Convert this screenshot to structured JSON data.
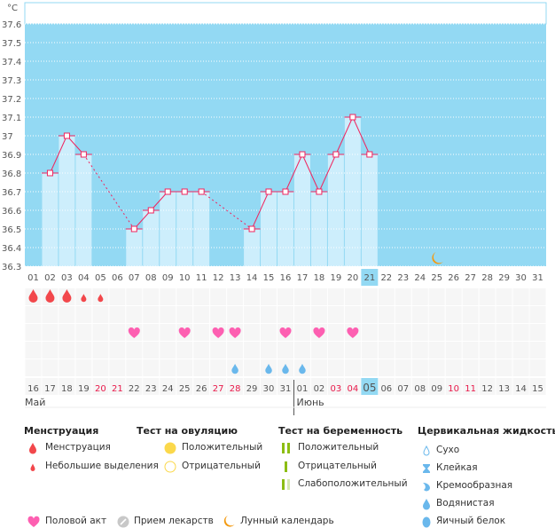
{
  "chart_data": {
    "type": "bar+line",
    "unit_label": "°C",
    "ylim": [
      36.3,
      37.6
    ],
    "yticks": [
      "36.3",
      "36.4",
      "36.5",
      "36.6",
      "36.7",
      "36.8",
      "36.9",
      "37",
      "37.1",
      "37.2",
      "37.3",
      "37.4",
      "37.5",
      "37.6"
    ],
    "grid": true,
    "cycle_days": [
      "01",
      "02",
      "03",
      "04",
      "05",
      "06",
      "07",
      "08",
      "09",
      "10",
      "11",
      "12",
      "13",
      "14",
      "15",
      "16",
      "17",
      "18",
      "19",
      "20",
      "21",
      "22",
      "23",
      "24",
      "25",
      "26",
      "27",
      "28",
      "29",
      "30",
      "31"
    ],
    "current_day_index": 21,
    "temperatures": [
      {
        "day": 2,
        "value": 36.8
      },
      {
        "day": 3,
        "value": 37.0
      },
      {
        "day": 4,
        "value": 36.9
      },
      {
        "day": 7,
        "value": 36.5
      },
      {
        "day": 8,
        "value": 36.6
      },
      {
        "day": 9,
        "value": 36.7
      },
      {
        "day": 10,
        "value": 36.7
      },
      {
        "day": 11,
        "value": 36.7
      },
      {
        "day": 14,
        "value": 36.5
      },
      {
        "day": 15,
        "value": 36.7
      },
      {
        "day": 16,
        "value": 36.7
      },
      {
        "day": 17,
        "value": 36.9
      },
      {
        "day": 18,
        "value": 36.7
      },
      {
        "day": 19,
        "value": 36.9
      },
      {
        "day": 20,
        "value": 37.1
      },
      {
        "day": 21,
        "value": 36.9
      }
    ],
    "moon_day": 25,
    "menstruation": {
      "heavy": [
        1,
        2,
        3
      ],
      "light": [
        4,
        5
      ]
    },
    "intercourse_days": [
      7,
      10,
      12,
      13,
      16,
      18,
      20
    ],
    "cervical_watery_days": [
      13,
      15,
      16,
      17
    ],
    "dates": [
      "16",
      "17",
      "18",
      "19",
      "20",
      "21",
      "22",
      "23",
      "24",
      "25",
      "26",
      "27",
      "28",
      "29",
      "30",
      "31",
      "01",
      "02",
      "03",
      "04",
      "05",
      "06",
      "07",
      "08",
      "09",
      "10",
      "11",
      "12",
      "13",
      "14",
      "15"
    ],
    "weekend_dates_index": [
      5,
      6,
      12,
      13,
      19,
      20,
      26,
      27
    ],
    "months": [
      {
        "label": "Май",
        "start_index": 1
      },
      {
        "label": "Июнь",
        "start_index": 17
      }
    ],
    "colors": {
      "plot_bg": "#93d9f3",
      "bar": "#cdeefc",
      "line": "#f0245e",
      "highlight": "#93d9f3",
      "weekend": "#e8194a",
      "menstruation": "#f2474b",
      "heart": "#fd5fb1",
      "fluid": "#6ab8ec",
      "moon": "#f39a11"
    }
  },
  "legend": {
    "menstruation": {
      "title": "Менструация",
      "items": [
        "Менструация",
        "Небольшие выделения"
      ]
    },
    "ovulation": {
      "title": "Тест на овуляцию",
      "items": [
        "Положительный",
        "Отрицательный"
      ]
    },
    "pregnancy": {
      "title": "Тест на беременность",
      "items": [
        "Положительный",
        "Отрицательный",
        "Слабоположительный"
      ]
    },
    "cervical": {
      "title": "Цервикальная жидкость",
      "items": [
        "Сухо",
        "Клейкая",
        "Кремообразная",
        "Водянистая",
        "Яичный белок"
      ]
    },
    "other": [
      "Половой акт",
      "Прием лекарств",
      "Лунный календарь"
    ]
  }
}
